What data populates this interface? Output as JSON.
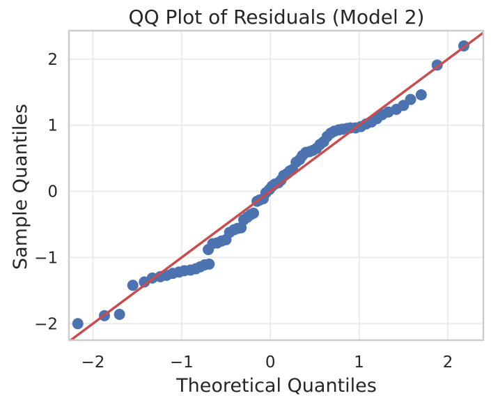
{
  "chart_data": {
    "type": "scatter",
    "title": "QQ Plot of Residuals (Model 2)",
    "xlabel": "Theoretical Quantiles",
    "ylabel": "Sample Quantiles",
    "xlim": [
      -2.27,
      2.4
    ],
    "ylim": [
      -2.25,
      2.43
    ],
    "xticks": [
      -2,
      -1,
      0,
      1,
      2
    ],
    "yticks": [
      -2,
      -1,
      0,
      1,
      2
    ],
    "xtick_labels": [
      "−2",
      "−1",
      "0",
      "1",
      "2"
    ],
    "ytick_labels": [
      "−2",
      "−1",
      "0",
      "1",
      "2"
    ],
    "grid": true,
    "colors": {
      "points": "#4c72b0",
      "reference_line": "#c44e52"
    },
    "reference_line": {
      "slope": 1.0,
      "intercept": 0.0
    },
    "points": [
      [
        -2.17,
        -2.0
      ],
      [
        -1.87,
        -1.88
      ],
      [
        -1.7,
        -1.86
      ],
      [
        -1.55,
        -1.42
      ],
      [
        -1.42,
        -1.37
      ],
      [
        -1.33,
        -1.31
      ],
      [
        -1.24,
        -1.29
      ],
      [
        -1.17,
        -1.27
      ],
      [
        -1.1,
        -1.24
      ],
      [
        -1.03,
        -1.22
      ],
      [
        -0.97,
        -1.2
      ],
      [
        -0.9,
        -1.19
      ],
      [
        -0.84,
        -1.17
      ],
      [
        -0.79,
        -1.14
      ],
      [
        -0.74,
        -1.11
      ],
      [
        -0.69,
        -1.1
      ],
      [
        -0.7,
        -0.88
      ],
      [
        -0.65,
        -0.79
      ],
      [
        -0.6,
        -0.78
      ],
      [
        -0.55,
        -0.75
      ],
      [
        -0.5,
        -0.73
      ],
      [
        -0.46,
        -0.62
      ],
      [
        -0.41,
        -0.58
      ],
      [
        -0.37,
        -0.56
      ],
      [
        -0.33,
        -0.55
      ],
      [
        -0.3,
        -0.43
      ],
      [
        -0.26,
        -0.39
      ],
      [
        -0.22,
        -0.35
      ],
      [
        -0.19,
        -0.33
      ],
      [
        -0.15,
        -0.15
      ],
      [
        -0.12,
        -0.13
      ],
      [
        -0.08,
        -0.11
      ],
      [
        -0.05,
        -0.02
      ],
      [
        -0.01,
        0.03
      ],
      [
        0.02,
        0.08
      ],
      [
        0.05,
        0.11
      ],
      [
        0.09,
        0.13
      ],
      [
        0.12,
        0.17
      ],
      [
        0.15,
        0.24
      ],
      [
        0.19,
        0.27
      ],
      [
        0.22,
        0.31
      ],
      [
        0.25,
        0.33
      ],
      [
        0.29,
        0.44
      ],
      [
        0.33,
        0.48
      ],
      [
        0.36,
        0.54
      ],
      [
        0.4,
        0.59
      ],
      [
        0.44,
        0.6
      ],
      [
        0.48,
        0.62
      ],
      [
        0.52,
        0.65
      ],
      [
        0.56,
        0.71
      ],
      [
        0.6,
        0.75
      ],
      [
        0.64,
        0.83
      ],
      [
        0.68,
        0.88
      ],
      [
        0.72,
        0.91
      ],
      [
        0.77,
        0.93
      ],
      [
        0.81,
        0.94
      ],
      [
        0.86,
        0.95
      ],
      [
        0.9,
        0.96
      ],
      [
        0.96,
        0.96
      ],
      [
        1.02,
        0.98
      ],
      [
        1.08,
        1.02
      ],
      [
        1.14,
        1.05
      ],
      [
        1.2,
        1.1
      ],
      [
        1.26,
        1.16
      ],
      [
        1.33,
        1.2
      ],
      [
        1.42,
        1.24
      ],
      [
        1.5,
        1.3
      ],
      [
        1.58,
        1.39
      ],
      [
        1.7,
        1.46
      ],
      [
        1.88,
        1.91
      ],
      [
        2.18,
        2.2
      ]
    ]
  }
}
